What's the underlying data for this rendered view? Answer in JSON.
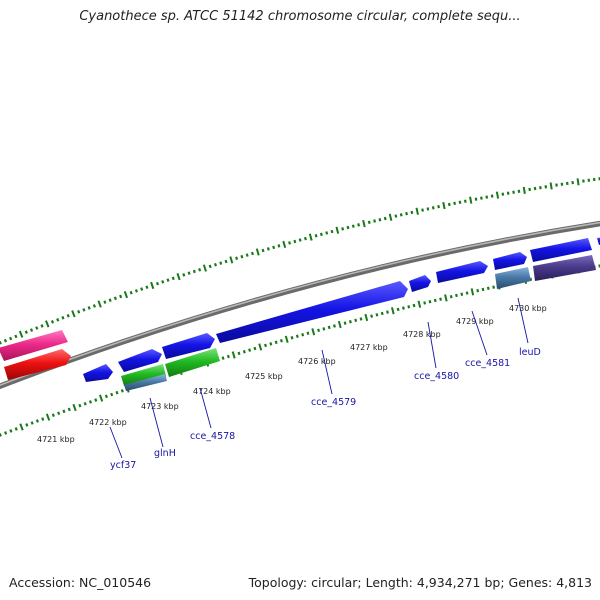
{
  "title": "Cyanothece sp. ATCC 51142 chromosome circular, complete sequ...",
  "footer": {
    "accession": "Accession: NC_010546",
    "summary": "Topology: circular; Length: 4,934,271 bp; Genes: 4,813"
  },
  "tick_labels": [
    "4721 kbp",
    "4722 kbp",
    "4723 kbp",
    "4724 kbp",
    "4725 kbp",
    "4726 kbp",
    "4727 kbp",
    "4728 kbp",
    "4729 kbp",
    "4730 kbp"
  ],
  "gene_labels": [
    "ycf37",
    "glnH",
    "cce_4578",
    "cce_4579",
    "cce_4580",
    "cce_4581",
    "leuD"
  ],
  "colors": {
    "backbone": "#808080",
    "tick": "#1a7a1a",
    "gene_forward": "#1010e0",
    "gene_green": "#22bb22",
    "gene_pink": "#ee2a8a",
    "gene_red": "#ee1111",
    "gene_steel": "#4a7aa8",
    "gene_purple": "#4a3a8a",
    "label": "#1515a6"
  }
}
